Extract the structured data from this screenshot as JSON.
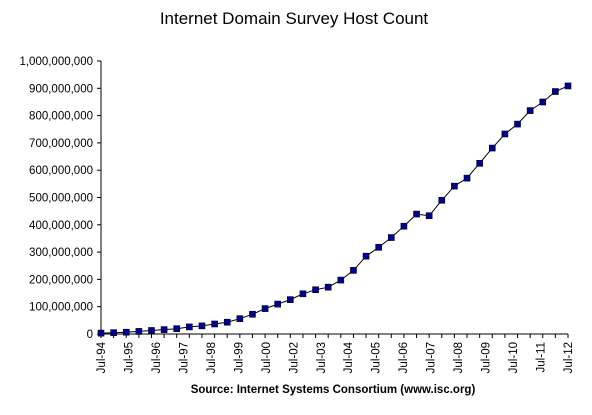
{
  "chart_data": {
    "type": "line",
    "title": "Internet Domain Survey Host Count",
    "source": "Source: Internet Systems Consortium (www.isc.org)",
    "ylim": [
      0,
      1000000000
    ],
    "yticks": [
      "0",
      "100,000,000",
      "200,000,000",
      "300,000,000",
      "400,000,000",
      "500,000,000",
      "600,000,000",
      "700,000,000",
      "800,000,000",
      "900,000,000",
      "1,000,000,000"
    ],
    "xticks": [
      "Jul-94",
      "Jul-95",
      "Jul-96",
      "Jul-97",
      "Jul-98",
      "Jul-99",
      "Jul-00",
      "Jul-02",
      "Jul-03",
      "Jul-04",
      "Jul-05",
      "Jul-06",
      "Jul-07",
      "Jul-08",
      "Jul-09",
      "Jul-10",
      "Jul-11",
      "Jul-12"
    ],
    "grid": false,
    "legend": "none",
    "marker_color": "#000099",
    "series": [
      {
        "values": [
          3200000,
          4900000,
          6600000,
          9500000,
          12900000,
          16100000,
          19500000,
          26000000,
          29700000,
          36700000,
          43200000,
          56200000,
          72400000,
          93000000,
          109600000,
          125900000,
          147300000,
          162100000,
          171600000,
          197500000,
          233100000,
          285100000,
          317600000,
          353300000,
          394900000,
          439300000,
          433200000,
          489800000,
          541700000,
          570900000,
          625200000,
          681100000,
          732700000,
          768900000,
          818400000,
          849900000,
          888200000,
          908600000
        ]
      }
    ]
  }
}
